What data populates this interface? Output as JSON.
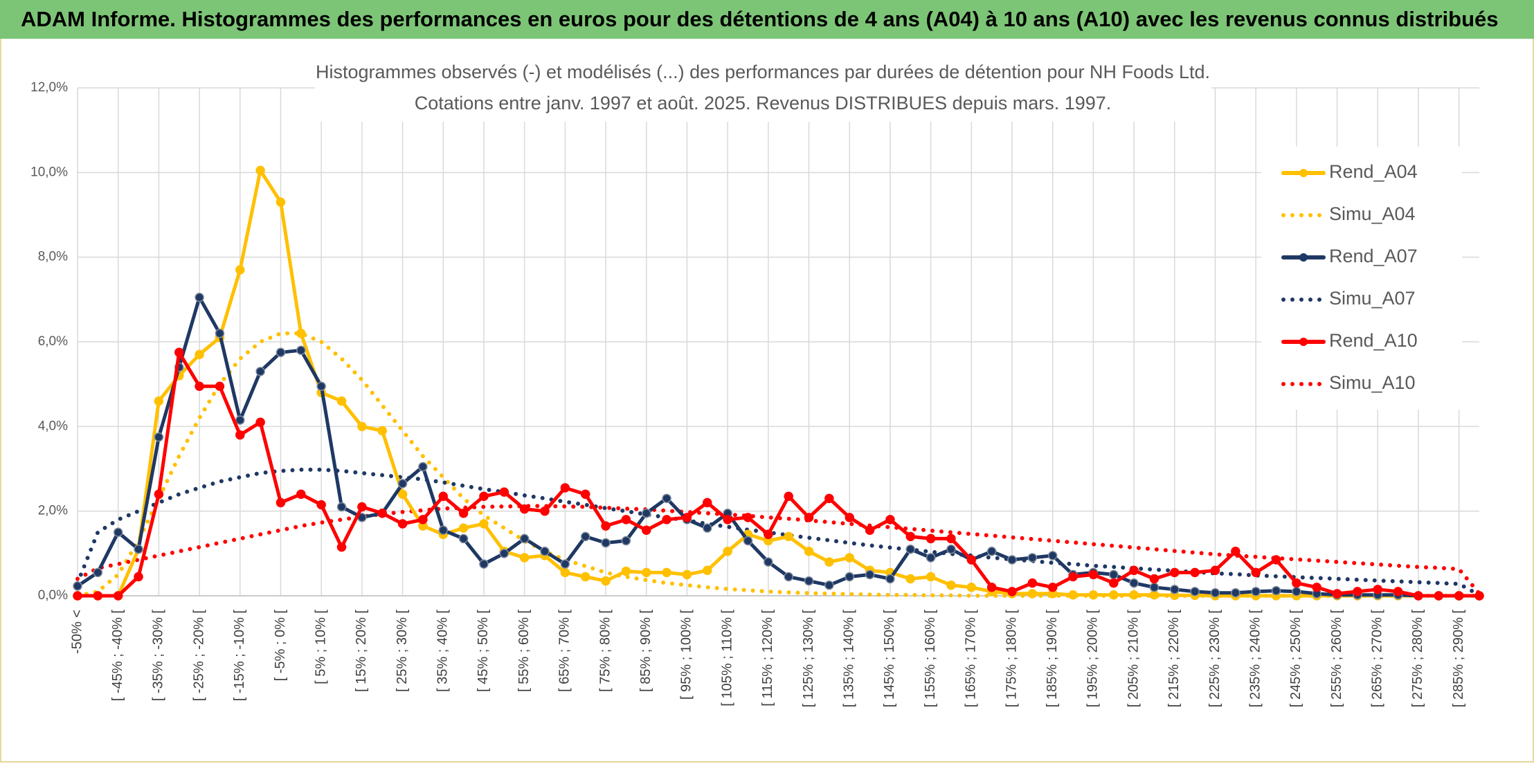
{
  "header": "ADAM Informe. Histogrammes des performances en euros pour des détentions de 4 ans (A04) à 10 ans (A10) avec les revenus connus distribués",
  "chart_data": {
    "type": "line",
    "title": "Histogrammes observés (-) et modélisés (...) des performances par durées de détention pour NH Foods Ltd.",
    "subtitle": "Cotations entre janv. 1997 et août. 2025. Revenus DISTRIBUES depuis mars. 1997.",
    "categories": [
      "-50% <",
      null,
      "[ -45% ; -40% [",
      null,
      "[ -35% ; -30% [",
      null,
      "[ -25% ; -20% [",
      null,
      "[ -15% ; -10% [",
      null,
      "[ -5% ; 0% [",
      null,
      "[ 5% ; 10% [",
      null,
      "[ 15% ; 20% [",
      null,
      "[ 25% ; 30% [",
      null,
      "[ 35% ; 40% [",
      null,
      "[ 45% ; 50% [",
      null,
      "[ 55% ; 60% [",
      null,
      "[ 65% ; 70% [",
      null,
      "[ 75% ; 80% [",
      null,
      "[ 85% ; 90% [",
      null,
      "[ 95% ; 100% [",
      null,
      "[ 105% ; 110% [",
      null,
      "[ 115% ; 120% [",
      null,
      "[ 125% ; 130% [",
      null,
      "[ 135% ; 140% [",
      null,
      "[ 145% ; 150% [",
      null,
      "[ 155% ; 160% [",
      null,
      "[ 165% ; 170% [",
      null,
      "[ 175% ; 180% [",
      null,
      "[ 185% ; 190% [",
      null,
      "[ 195% ; 200% [",
      null,
      "[ 205% ; 210% [",
      null,
      "[ 215% ; 220% [",
      null,
      "[ 225% ; 230% [",
      null,
      "[ 235% ; 240% [",
      null,
      "[ 245% ; 250% [",
      null,
      "[ 255% ; 260% [",
      null,
      "[ 265% ; 270% [",
      null,
      "[ 275% ; 280% [",
      null,
      "[ 285% ; 290% [",
      null
    ],
    "ylim": [
      0,
      12
    ],
    "yticks": [
      {
        "value": 0,
        "label": "0,0%"
      },
      {
        "value": 2,
        "label": "2,0%"
      },
      {
        "value": 4,
        "label": "4,0%"
      },
      {
        "value": 6,
        "label": "6,0%"
      },
      {
        "value": 8,
        "label": "8,0%"
      },
      {
        "value": 10,
        "label": "10,0%"
      },
      {
        "value": 12,
        "label": "12,0%"
      }
    ],
    "grid": true,
    "legend": "right",
    "series": [
      {
        "name": "Rend_A04",
        "color": "#FFC000",
        "line_style": "solid",
        "markers": true,
        "values": [
          0,
          0,
          0,
          1.1,
          4.6,
          5.2,
          5.7,
          6.1,
          7.7,
          10.05,
          9.3,
          6.2,
          4.8,
          4.6,
          4.0,
          3.9,
          2.4,
          1.65,
          1.45,
          1.6,
          1.7,
          1.05,
          0.9,
          0.95,
          0.55,
          0.45,
          0.35,
          0.58,
          0.55,
          0.55,
          0.5,
          0.6,
          1.05,
          1.45,
          1.3,
          1.4,
          1.05,
          0.8,
          0.9,
          0.6,
          0.55,
          0.4,
          0.45,
          0.25,
          0.2,
          0.1,
          0.05,
          0.05,
          0.05,
          0.02,
          0.02,
          0.02,
          0.02,
          0.02,
          0.01,
          0.01,
          0,
          0,
          0,
          0,
          0,
          0,
          0,
          0,
          0,
          0,
          0,
          0,
          0,
          0
        ]
      },
      {
        "name": "Simu_A04",
        "color": "#FFC000",
        "line_style": "dotted",
        "markers": false,
        "values": [
          0,
          0.1,
          0.5,
          1.3,
          2.3,
          3.3,
          4.2,
          5.0,
          5.6,
          6.0,
          6.2,
          6.2,
          6.0,
          5.6,
          5.1,
          4.5,
          3.9,
          3.3,
          2.8,
          2.3,
          1.9,
          1.6,
          1.3,
          1.05,
          0.85,
          0.7,
          0.55,
          0.45,
          0.37,
          0.3,
          0.25,
          0.2,
          0.16,
          0.13,
          0.1,
          0.08,
          0.06,
          0.05,
          0.04,
          0.03,
          0.02,
          0.02,
          0.01,
          0.01,
          0,
          0,
          0,
          0,
          0,
          0,
          0,
          0,
          0,
          0,
          0,
          0,
          0,
          0,
          0,
          0,
          0,
          0,
          0,
          0,
          0,
          0,
          0,
          0,
          0,
          0
        ]
      },
      {
        "name": "Rend_A07",
        "color": "#1F3864",
        "line_style": "solid",
        "markers": true,
        "values": [
          0.23,
          0.55,
          1.5,
          1.1,
          3.75,
          5.4,
          7.05,
          6.2,
          4.15,
          5.3,
          5.75,
          5.8,
          4.95,
          2.1,
          1.85,
          1.95,
          2.65,
          3.05,
          1.55,
          1.35,
          0.75,
          1.0,
          1.35,
          1.05,
          0.75,
          1.4,
          1.25,
          1.3,
          1.95,
          2.3,
          1.8,
          1.6,
          1.95,
          1.3,
          0.8,
          0.45,
          0.35,
          0.25,
          0.45,
          0.5,
          0.4,
          1.1,
          0.9,
          1.1,
          0.85,
          1.05,
          0.85,
          0.9,
          0.95,
          0.5,
          0.55,
          0.5,
          0.3,
          0.2,
          0.15,
          0.1,
          0.07,
          0.07,
          0.1,
          0.12,
          0.1,
          0.05,
          0.02,
          0.02,
          0.02,
          0.02,
          0,
          0,
          0,
          0
        ]
      },
      {
        "name": "Simu_A07",
        "color": "#1F3864",
        "line_style": "dotted",
        "markers": false,
        "values": [
          0.3,
          1.5,
          1.8,
          2.0,
          2.2,
          2.4,
          2.55,
          2.7,
          2.8,
          2.9,
          2.95,
          2.98,
          2.98,
          2.95,
          2.9,
          2.85,
          2.8,
          2.75,
          2.68,
          2.6,
          2.52,
          2.45,
          2.37,
          2.3,
          2.22,
          2.15,
          2.07,
          2.0,
          1.92,
          1.85,
          1.78,
          1.7,
          1.63,
          1.56,
          1.5,
          1.43,
          1.37,
          1.31,
          1.25,
          1.19,
          1.14,
          1.09,
          1.04,
          0.99,
          0.95,
          0.9,
          0.86,
          0.82,
          0.78,
          0.75,
          0.71,
          0.68,
          0.65,
          0.62,
          0.59,
          0.56,
          0.53,
          0.51,
          0.48,
          0.46,
          0.44,
          0.42,
          0.4,
          0.38,
          0.36,
          0.34,
          0.32,
          0.3,
          0.28,
          0.02
        ]
      },
      {
        "name": "Rend_A10",
        "color": "#FF0000",
        "line_style": "solid",
        "markers": true,
        "values": [
          0,
          0,
          0,
          0.45,
          2.4,
          5.75,
          4.95,
          4.95,
          3.8,
          4.1,
          2.2,
          2.4,
          2.15,
          1.15,
          2.1,
          1.95,
          1.7,
          1.8,
          2.35,
          1.95,
          2.35,
          2.45,
          2.05,
          2.0,
          2.55,
          2.4,
          1.65,
          1.8,
          1.55,
          1.8,
          1.85,
          2.2,
          1.8,
          1.85,
          1.45,
          2.35,
          1.85,
          2.3,
          1.85,
          1.55,
          1.8,
          1.4,
          1.35,
          1.35,
          0.85,
          0.2,
          0.1,
          0.3,
          0.2,
          0.45,
          0.5,
          0.3,
          0.6,
          0.4,
          0.55,
          0.55,
          0.6,
          1.05,
          0.55,
          0.85,
          0.3,
          0.2,
          0.05,
          0.1,
          0.15,
          0.1,
          0,
          0,
          0,
          0
        ]
      },
      {
        "name": "Simu_A10",
        "color": "#FF0000",
        "line_style": "dotted",
        "markers": false,
        "values": [
          0.4,
          0.65,
          0.75,
          0.85,
          0.95,
          1.05,
          1.15,
          1.25,
          1.35,
          1.45,
          1.55,
          1.65,
          1.73,
          1.8,
          1.87,
          1.93,
          1.98,
          2.02,
          2.06,
          2.08,
          2.1,
          2.11,
          2.12,
          2.12,
          2.11,
          2.1,
          2.08,
          2.06,
          2.04,
          2.01,
          1.98,
          1.95,
          1.92,
          1.89,
          1.85,
          1.82,
          1.78,
          1.74,
          1.7,
          1.66,
          1.62,
          1.58,
          1.54,
          1.5,
          1.46,
          1.42,
          1.38,
          1.34,
          1.3,
          1.26,
          1.22,
          1.18,
          1.14,
          1.1,
          1.06,
          1.02,
          0.98,
          0.95,
          0.92,
          0.89,
          0.86,
          0.83,
          0.8,
          0.77,
          0.74,
          0.71,
          0.68,
          0.66,
          0.63,
          0.05
        ]
      }
    ]
  }
}
